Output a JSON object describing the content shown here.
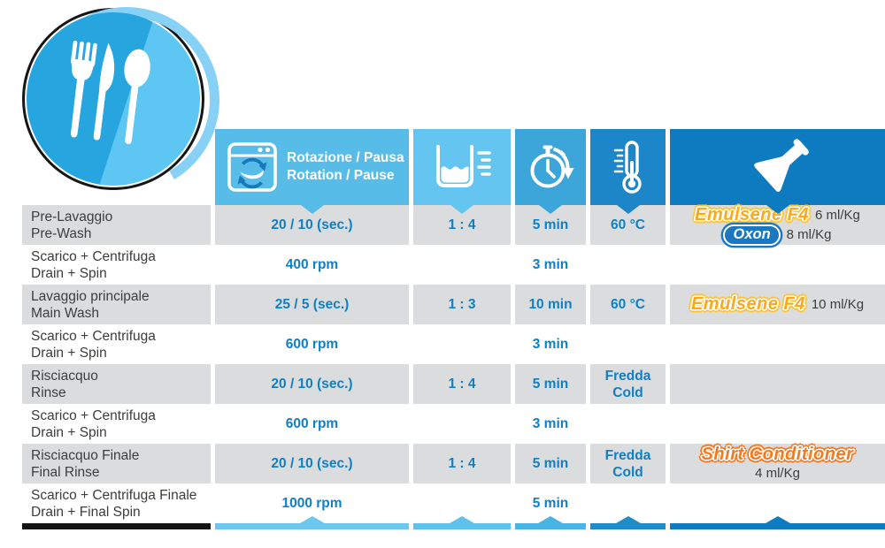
{
  "badge": {
    "icon": "cutlery-icon",
    "dark_blue": "#27A5DF",
    "light_blue": "#5EC6F2",
    "swoosh_blue": "#86D1F5"
  },
  "colors": {
    "value_text": "#0F80C3",
    "label_text": "#3D3D3C",
    "row_shade": "#DBDCDD",
    "washer_arrow_blue": "#1878BC",
    "emulsene_gold": "#F9A91A",
    "emulsene_outline": "#FFC333",
    "oxon_blue": "#1B78BF",
    "shirt_orange": "#F4791F",
    "bar_black": "#141414"
  },
  "table": {
    "columns": [
      {
        "id": "rotation",
        "icon": "washing-machine-icon",
        "icon_key": "washer",
        "color": "#57BCE8",
        "label_line1": "Rotazione / Pausa",
        "label_line2": "Rotation / Pause"
      },
      {
        "id": "water",
        "icon": "water-level-icon",
        "icon_key": "water",
        "color": "#64C5F0"
      },
      {
        "id": "time",
        "icon": "timer-icon",
        "icon_key": "timer",
        "color": "#3CA6DA"
      },
      {
        "id": "temp",
        "icon": "thermometer-icon",
        "icon_key": "thermo",
        "color": "#1C86C8"
      },
      {
        "id": "chem",
        "icon": "flask-icon",
        "icon_key": "flask",
        "color": "#0E7BC1"
      }
    ],
    "rows": [
      {
        "shaded": true,
        "label_it": "Pre-Lavaggio",
        "label_en": "Pre-Wash",
        "rotation": "20 / 10 (sec.)",
        "water_ratio": "1 : 4",
        "time": "5 min",
        "temp": [
          "60 °C"
        ],
        "chemicals": [
          {
            "brand": "Emulsene F4",
            "style": "emulsene",
            "dose": "6 ml/Kg",
            "dose_below": false
          },
          {
            "brand": "Oxon",
            "style": "oxon",
            "dose": "8 ml/Kg",
            "dose_below": false
          }
        ]
      },
      {
        "shaded": false,
        "label_it": "Scarico + Centrifuga",
        "label_en": "Drain + Spin",
        "rotation": "400 rpm",
        "time": "3 min",
        "temp": [],
        "chemicals": []
      },
      {
        "shaded": true,
        "label_it": "Lavaggio principale",
        "label_en": "Main Wash",
        "rotation": "25 / 5 (sec.)",
        "water_ratio": "1 : 3",
        "time": "10 min",
        "temp": [
          "60 °C"
        ],
        "chemicals": [
          {
            "brand": "Emulsene F4",
            "style": "emulsene",
            "dose": "10 ml/Kg",
            "dose_below": false
          }
        ]
      },
      {
        "shaded": false,
        "label_it": "Scarico + Centrifuga",
        "label_en": "Drain + Spin",
        "rotation": "600 rpm",
        "time": "3 min",
        "temp": [],
        "chemicals": []
      },
      {
        "shaded": true,
        "label_it": "Risciacquo",
        "label_en": "Rinse",
        "rotation": "20 / 10 (sec.)",
        "water_ratio": "1 : 4",
        "time": "5 min",
        "temp": [
          "Fredda",
          "Cold"
        ],
        "chemicals": []
      },
      {
        "shaded": false,
        "label_it": "Scarico + Centrifuga",
        "label_en": "Drain + Spin",
        "rotation": "600 rpm",
        "time": "3 min",
        "temp": [],
        "chemicals": []
      },
      {
        "shaded": true,
        "label_it": "Risciacquo Finale",
        "label_en": "Final Rinse",
        "rotation": "20 / 10 (sec.)",
        "water_ratio": "1 : 4",
        "time": "5 min",
        "temp": [
          "Fredda",
          "Cold"
        ],
        "chemicals": [
          {
            "brand": "Shirt Conditioner",
            "style": "shirt",
            "dose": "4 ml/Kg",
            "dose_below": true
          }
        ]
      },
      {
        "shaded": false,
        "label_it": "Scarico + Centrifuga Finale",
        "label_en": "Drain + Final Spin",
        "rotation": "1000 rpm",
        "time": "5 min",
        "temp": [],
        "chemicals": []
      }
    ]
  },
  "bar": {
    "segments": [
      {
        "id": "label",
        "color": "#141414",
        "chevron": false
      },
      {
        "id": "rotation",
        "color": "#6CC7EF",
        "chevron": true
      },
      {
        "id": "water",
        "color": "#5FC2ED",
        "chevron": true
      },
      {
        "id": "time",
        "color": "#49B3E3",
        "chevron": true
      },
      {
        "id": "temp",
        "color": "#1E8CCB",
        "chevron": true
      },
      {
        "id": "chem",
        "color": "#0F7BC0",
        "chevron": true
      }
    ]
  }
}
